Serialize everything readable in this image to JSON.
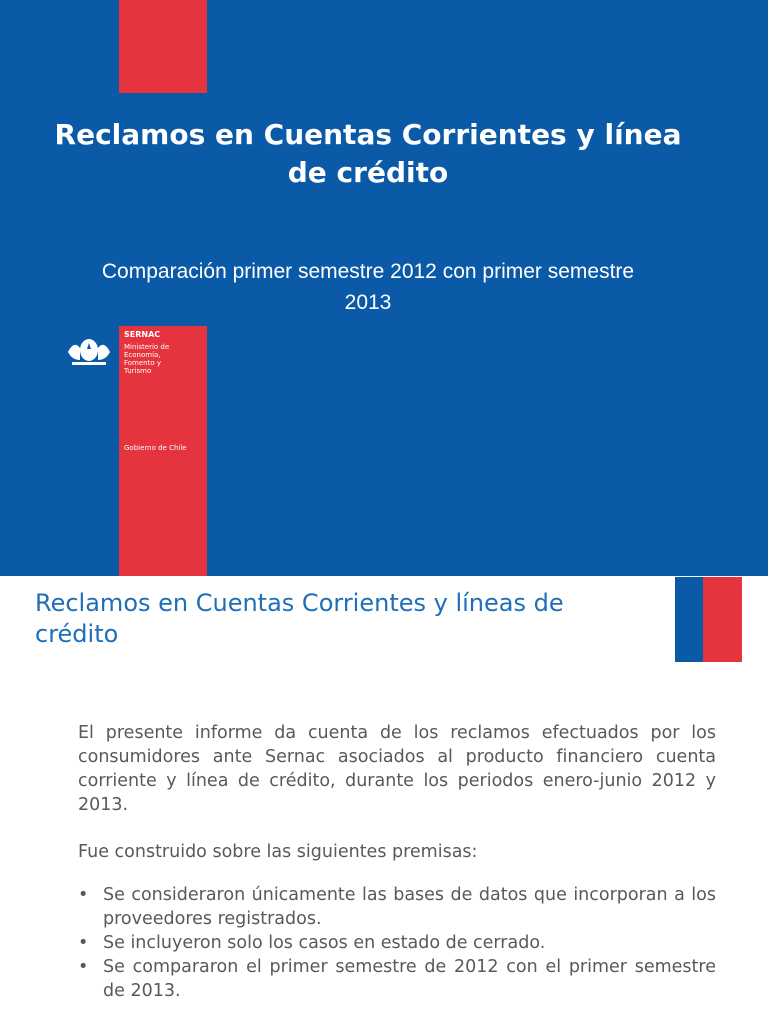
{
  "slide1": {
    "title": "Reclamos en Cuentas Corrientes y línea de crédito",
    "subtitle": "Comparación primer semestre 2012 con primer semestre 2013",
    "logo": {
      "agency": "SERNAC",
      "ministry": "Ministerio de Economía, Fomento y Turismo",
      "government": "Gobierno de Chile"
    }
  },
  "slide2": {
    "title": "Reclamos en Cuentas Corrientes y líneas de crédito",
    "paragraphs": [
      "El presente informe da cuenta de los reclamos efectuados por los consumidores ante Sernac asociados al producto financiero cuenta corriente y línea de crédito, durante los periodos enero-junio 2012 y 2013.",
      "Fue construido sobre las siguientes premisas:"
    ],
    "bullets": [
      "Se consideraron únicamente las bases de datos que incorporan a los proveedores registrados.",
      "Se incluyeron solo los casos en estado de cerrado.",
      "Se compararon el primer semestre de 2012 con el primer semestre de 2013."
    ]
  }
}
